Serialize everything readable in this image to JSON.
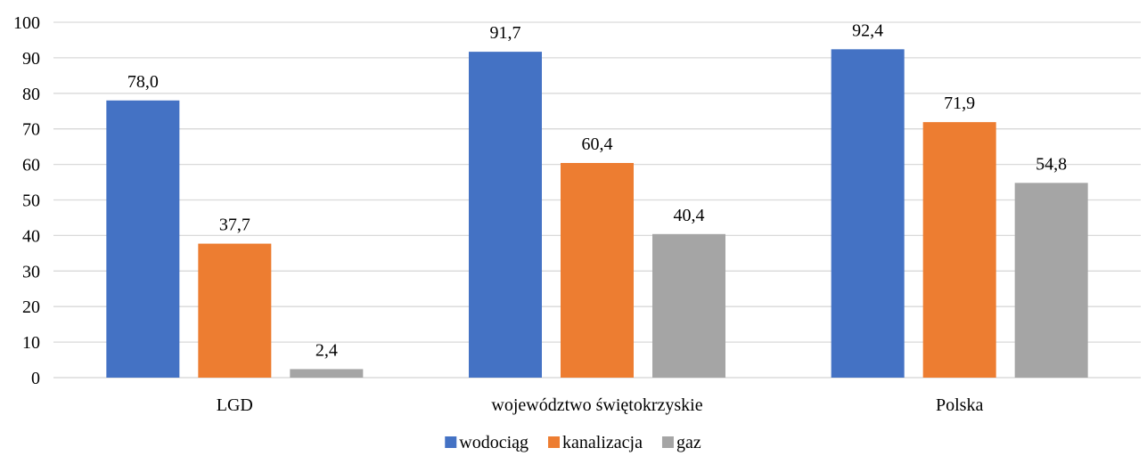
{
  "chart_data": {
    "type": "bar",
    "title": "",
    "xlabel": "",
    "ylabel": "",
    "categories": [
      "LGD",
      "województwo świętokrzyskie",
      "Polska"
    ],
    "series": [
      {
        "name": "wodociąg",
        "values": [
          78.0,
          91.7,
          92.4
        ],
        "labels": [
          "78,0",
          "91,7",
          "92,4"
        ],
        "color": "#4472C4"
      },
      {
        "name": "kanalizacja",
        "values": [
          37.7,
          60.4,
          71.9
        ],
        "labels": [
          "37,7",
          "60,4",
          "71,9"
        ],
        "color": "#ED7D31"
      },
      {
        "name": "gaz",
        "values": [
          2.4,
          40.4,
          54.8
        ],
        "labels": [
          "2,4",
          "40,4",
          "54,8"
        ],
        "color": "#A5A5A5"
      }
    ],
    "ylim": [
      0,
      100
    ],
    "yticks": [
      0,
      10,
      20,
      30,
      40,
      50,
      60,
      70,
      80,
      90,
      100
    ],
    "grid": true,
    "legend_position": "bottom",
    "gridline_color": "#D9D9D9"
  }
}
